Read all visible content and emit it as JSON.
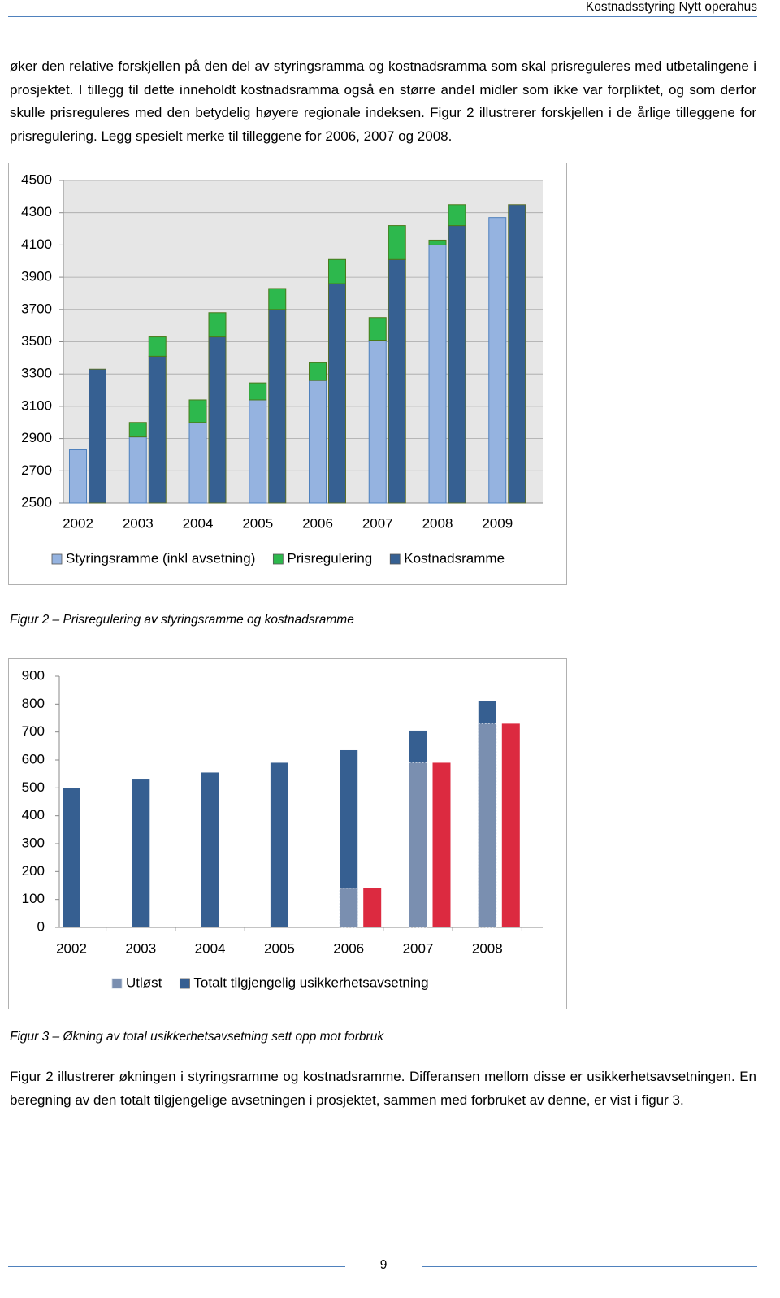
{
  "header": {
    "title": "Kostnadsstyring Nytt operahus"
  },
  "paragraphs": [
    "øker den relative forskjellen på den del av styringsramma og kostnadsramma som skal prisreguleres med utbetalingene i prosjektet. I tillegg til dette inneholdt kostnadsramma også en større andel midler som ikke var forpliktet, og som derfor skulle prisreguleres med den betydelig høyere regionale indeksen. Figur 2 illustrerer forskjellen i de årlige tilleggene for prisregulering. Legg spesielt merke til tilleggene for 2006, 2007 og 2008.",
    "Figur 2 illustrerer økningen i styringsramme og kostnadsramme. Differansen mellom disse er usikkerhetsavsetningen. En beregning av den totalt tilgjengelige avsetningen i prosjektet, sammen med forbruket av denne, er vist i figur 3."
  ],
  "chart_data": [
    {
      "type": "stacked-bar",
      "categories": [
        "2002",
        "2003",
        "2004",
        "2005",
        "2006",
        "2007",
        "2008",
        "2009"
      ],
      "series": [
        {
          "name": "Styringsramme (inkl avsetning)",
          "color": "#95b3e0",
          "values": [
            2830,
            2910,
            3000,
            3140,
            3260,
            3510,
            4100,
            4270
          ]
        },
        {
          "name": "Prisregulering",
          "color": "#2db84d",
          "values": [
            [
              0,
              0
            ],
            [
              90,
              120
            ],
            [
              140,
              150
            ],
            [
              105,
              130
            ],
            [
              110,
              150
            ],
            [
              140,
              210
            ],
            [
              30,
              130
            ],
            [
              0,
              0
            ]
          ]
        },
        {
          "name": "Kostnadsramme",
          "color": "#366092",
          "values": [
            3330,
            3410,
            3530,
            3700,
            3860,
            4010,
            4220,
            4350
          ]
        }
      ],
      "ylim": [
        2500,
        4500
      ],
      "yticks": [
        2500,
        2700,
        2900,
        3100,
        3300,
        3500,
        3700,
        3900,
        4100,
        4300,
        4500
      ],
      "grid": true,
      "legend": "bottom"
    },
    {
      "type": "bar",
      "categories": [
        "2002",
        "2003",
        "2004",
        "2005",
        "2006",
        "2007",
        "2008"
      ],
      "series": [
        {
          "name": "Utløst",
          "color": "#7a8fb0",
          "overlay": true,
          "values": [
            null,
            null,
            null,
            null,
            140,
            590,
            730
          ]
        },
        {
          "name": "Totalt tilgjengelig usikkerhetsavsetning",
          "color": "#365f91",
          "values": [
            500,
            530,
            555,
            590,
            635,
            705,
            810
          ]
        },
        {
          "color": "#dc2a40",
          "beside": true,
          "values": [
            null,
            null,
            null,
            null,
            140,
            590,
            730
          ]
        }
      ],
      "ylim": [
        0,
        900
      ],
      "yticks": [
        0,
        100,
        200,
        300,
        400,
        500,
        600,
        700,
        800,
        900
      ],
      "grid": false,
      "legend": "bottom"
    }
  ],
  "captions": [
    "Figur 2 – Prisregulering av styringsramme og kostnadsramme",
    "Figur 3 – Økning av total usikkerhetsavsetning sett opp mot forbruk"
  ],
  "footer": {
    "page_number": "9"
  }
}
